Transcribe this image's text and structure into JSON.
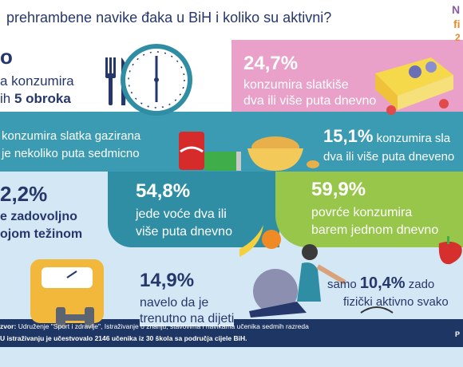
{
  "header": {
    "title": "prehrambene navike đaka u BiH i koliko su aktivni?",
    "logo": [
      "N",
      "fi",
      "2"
    ]
  },
  "panels": [
    {
      "stat": "o",
      "lines": [
        "a konzumira",
        "ih"
      ],
      "bold": "5 obroka"
    },
    {
      "stat": "24,7%",
      "lines": [
        "konzumira slatkiše",
        "dva ili više puta dnevno"
      ]
    },
    {
      "lines": [
        "konzumira slatka gazirana",
        "je nekoliko puta sedmicno"
      ]
    },
    {
      "stat": "15,1%",
      "suffix": "konzumira sla",
      "lines": [
        "dva ili više puta dneveno"
      ]
    },
    {
      "stat": "2,2%",
      "lines": [
        "e zadovoljno",
        "ojom težinom"
      ]
    },
    {
      "stat": "54,8%",
      "lines": [
        "jede voće dva ili",
        "više puta dnevno"
      ]
    },
    {
      "stat": "59,9%",
      "lines": [
        "povrće konzumira",
        "barem jednom dnevno"
      ]
    },
    {
      "stat": "14,9%",
      "lines": [
        "navelo da je",
        "trenutno na dijeti"
      ]
    },
    {
      "prefix": "samo",
      "stat": "10,4%",
      "suffix": "zado",
      "lines": [
        "fizički aktivno svako"
      ]
    }
  ],
  "footer": {
    "source_label": "zvor:",
    "source": "Udruženje \"Sport i zdravlje\", Istraživanje o znanju, stavovima i navikama učenika sedmih razreda",
    "note": "U istraživanju je učestvovalo 2146 učenika iz 30 škola sa područja cijele BiH.",
    "corner": "P"
  }
}
